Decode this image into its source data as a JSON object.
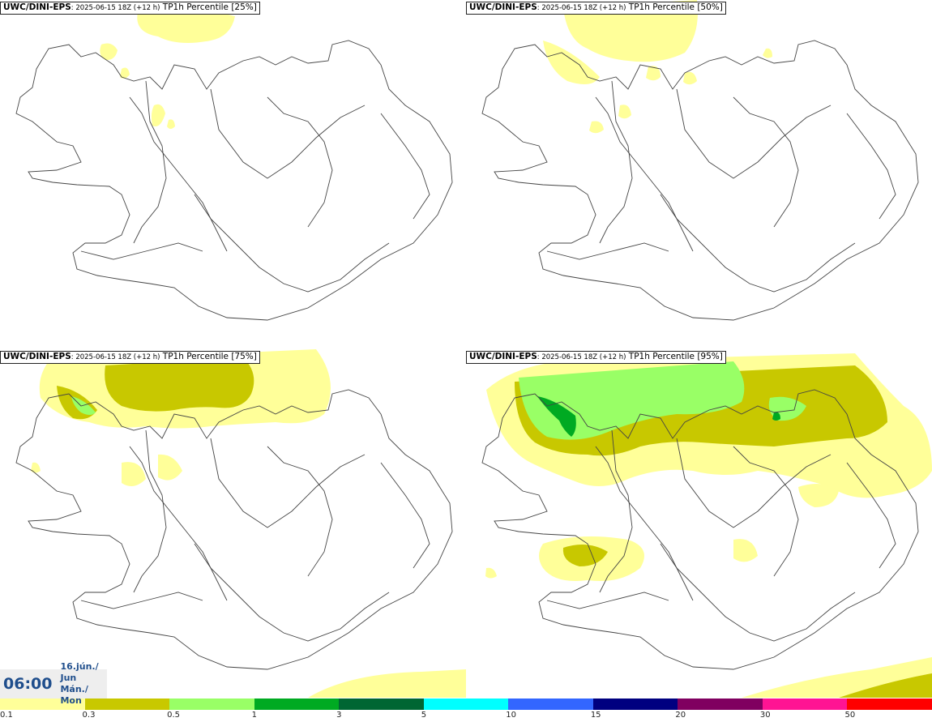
{
  "panels": [
    {
      "model": "UWC/DINI-EPS",
      "run": ": 2025-06-15 18Z (+12 h)",
      "product": " TP1h Percentile [25%]"
    },
    {
      "model": "UWC/DINI-EPS",
      "run": ": 2025-06-15 18Z (+12 h)",
      "product": " TP1h Percentile [50%]"
    },
    {
      "model": "UWC/DINI-EPS",
      "run": ": 2025-06-15 18Z (+12 h)",
      "product": " TP1h Percentile [75%]"
    },
    {
      "model": "UWC/DINI-EPS",
      "run": ": 2025-06-15 18Z (+12 h)",
      "product": " TP1h Percentile [95%]"
    }
  ],
  "valid_time": {
    "time": "06:00",
    "date_line1": "16.jún./ Jun",
    "date_line2": "Mán./ Mon"
  },
  "colorbar": {
    "labels": [
      "0.1",
      "0.3",
      "0.5",
      "1",
      "3",
      "5",
      "10",
      "15",
      "20",
      "30",
      "50"
    ],
    "colors": [
      "#ffff99",
      "#c8c800",
      "#99ff66",
      "#00aa22",
      "#006633",
      "#00ffff",
      "#3366ff",
      "#000080",
      "#800060",
      "#ff1493",
      "#ff0000"
    ]
  },
  "colors": {
    "header_border": "#222222",
    "time_text": "#1f4e8c",
    "coast": "#444444"
  }
}
